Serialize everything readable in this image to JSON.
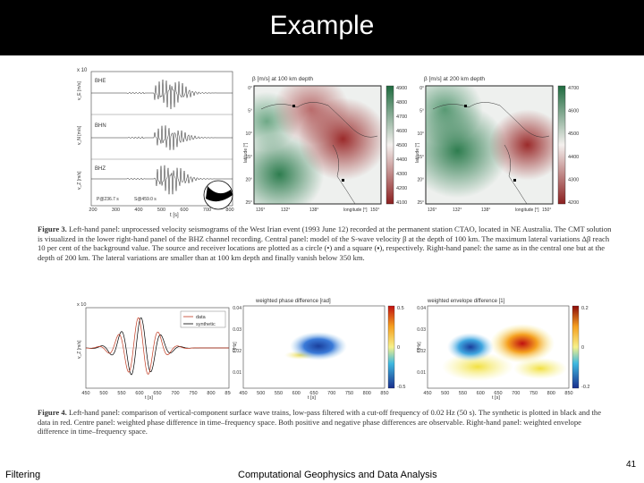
{
  "slide": {
    "title": "Example",
    "footer_left": "Filtering",
    "footer_center": "Computational Geophysics and Data Analysis",
    "page_number": "41"
  },
  "figure3": {
    "traces": {
      "y_exponent": "x 10",
      "labels": [
        "BHE",
        "BHN",
        "BHZ"
      ],
      "ylabels": [
        "v_E [m/s]",
        "v_N [m/s]",
        "v_Z [m/s]"
      ],
      "xticks": [
        "200",
        "300",
        "400",
        "500",
        "600",
        "700",
        "800"
      ],
      "xlabel": "t [s]",
      "p_label": "P@236.7 s",
      "s_label": "S@459.0 s"
    },
    "map1": {
      "title": "β [m/s] at 100 km depth",
      "xticks": [
        "126°",
        "132°",
        "138°",
        "longitude [°]",
        "150°"
      ],
      "yticks": [
        "0°",
        "5°",
        "10°",
        "15°",
        "20°",
        "25°"
      ],
      "ylabel": "latitude [°]",
      "colorbar": [
        "4900",
        "4800",
        "4700",
        "4600",
        "4500",
        "4400",
        "4300",
        "4200",
        "4100"
      ]
    },
    "map2": {
      "title": "β [m/s] at 200 km depth",
      "xticks": [
        "126°",
        "132°",
        "138°",
        "longitude [°]",
        "150°"
      ],
      "yticks": [
        "0°",
        "5°",
        "10°",
        "15°",
        "20°",
        "25°"
      ],
      "ylabel": "latitude [°]",
      "colorbar": [
        "4700",
        "4600",
        "4500",
        "4400",
        "4300",
        "4200"
      ]
    },
    "caption_lead": "Figure 3.",
    "caption_text": "Left-hand panel: unprocessed velocity seismograms of the West Irian event (1993 June 12) recorded at the permanent station CTAO, located in NE Australia. The CMT solution is visualized in the lower right-hand panel of the BHZ channel recording. Central panel: model of the S-wave velocity β at the depth of 100 km. The maximum lateral variations Δβ reach 10 per cent of the background value. The source and receiver locations are plotted as a circle (•) and a square (▪), respectively. Right-hand panel: the same as in the central one but at the depth of 200 km. The lateral variations are smaller than at 100 km depth and finally vanish below 350 km."
  },
  "figure4": {
    "wave": {
      "y_exponent": "x 10",
      "ylabel": "v_Z [m/s]",
      "legend": [
        "data",
        "synthetic"
      ],
      "xticks": [
        "450",
        "500",
        "550",
        "600",
        "650",
        "700",
        "750",
        "800",
        "850"
      ],
      "xlabel": "t [s]"
    },
    "phase": {
      "title": "weighted phase difference [rad]",
      "yticks": [
        "0.04",
        "0.03",
        "0.02",
        "0.01"
      ],
      "ylabel": "f [Hz]",
      "xticks": [
        "450",
        "500",
        "550",
        "600",
        "650",
        "700",
        "750",
        "800",
        "850"
      ],
      "xlabel": "t [s]",
      "colorbar": [
        "0.5",
        "0",
        "-0.5"
      ]
    },
    "envelope": {
      "title": "weighted envelope difference [1]",
      "yticks": [
        "0.04",
        "0.03",
        "0.02",
        "0.01"
      ],
      "ylabel": "f [Hz]",
      "xticks": [
        "450",
        "500",
        "550",
        "600",
        "650",
        "700",
        "750",
        "800",
        "850"
      ],
      "xlabel": "t [s]",
      "colorbar": [
        "0.2",
        "0",
        "-0.2"
      ]
    },
    "caption_lead": "Figure 4.",
    "caption_text": "Left-hand panel: comparison of vertical-component surface wave trains, low-pass filtered with a cut-off frequency of 0.02 Hz (50 s). The synthetic is plotted in black and the data in red. Centre panel: weighted phase difference in time–frequency space. Both positive and negative phase differences are observable. Right-hand panel: weighted envelope difference in time–frequency space."
  },
  "colors": {
    "velocity_high": "#2e7d4f",
    "velocity_low": "#9b2b2b",
    "positive": "#d92a10",
    "negative": "#1f4fb5",
    "data_line": "#c23b22",
    "synthetic_line": "#000000"
  }
}
